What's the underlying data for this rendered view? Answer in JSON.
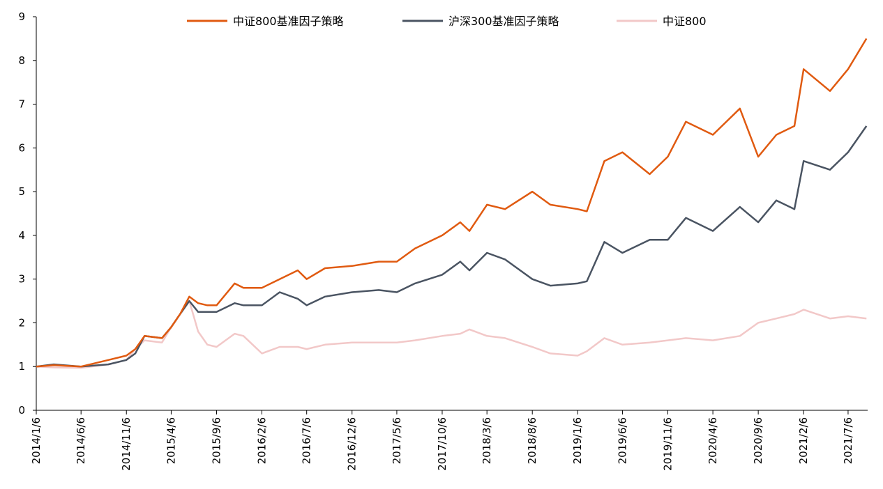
{
  "chart_data": {
    "type": "line",
    "title": "",
    "xlabel": "",
    "ylabel": "",
    "ylim": [
      0,
      9
    ],
    "yticks": [
      "0",
      "1",
      "2",
      "3",
      "4",
      "5",
      "6",
      "7",
      "8",
      "9"
    ],
    "x_tick_labels": [
      "2014/1/6",
      "2014/6/6",
      "2014/11/6",
      "2015/4/6",
      "2015/9/6",
      "2016/2/6",
      "2016/7/6",
      "2016/12/6",
      "2017/5/6",
      "2017/10/6",
      "2018/3/6",
      "2018/8/6",
      "2019/1/6",
      "2019/6/6",
      "2019/11/6",
      "2020/4/6",
      "2020/9/6",
      "2021/2/6",
      "2021/7/6"
    ],
    "grid": false,
    "legend_position": "top-center",
    "x": [
      "2014/1/6",
      "2014/3/6",
      "2014/6/6",
      "2014/9/6",
      "2014/11/6",
      "2014/12/6",
      "2015/1/6",
      "2015/3/6",
      "2015/4/6",
      "2015/5/6",
      "2015/6/6",
      "2015/7/6",
      "2015/8/6",
      "2015/9/6",
      "2015/11/6",
      "2015/12/6",
      "2016/2/6",
      "2016/4/6",
      "2016/6/6",
      "2016/7/6",
      "2016/9/6",
      "2016/12/6",
      "2017/3/6",
      "2017/5/6",
      "2017/7/6",
      "2017/10/6",
      "2017/12/6",
      "2018/1/6",
      "2018/3/6",
      "2018/5/6",
      "2018/8/6",
      "2018/10/6",
      "2019/1/6",
      "2019/2/6",
      "2019/4/6",
      "2019/6/6",
      "2019/9/6",
      "2019/11/6",
      "2020/1/6",
      "2020/4/6",
      "2020/7/6",
      "2020/9/6",
      "2020/11/6",
      "2021/1/6",
      "2021/2/6",
      "2021/5/6",
      "2021/7/6",
      "2021/9/6"
    ],
    "series": [
      {
        "name": "中证800基准因子策略",
        "color": "#E05A10",
        "values": [
          1.0,
          1.03,
          1.0,
          1.15,
          1.25,
          1.4,
          1.7,
          1.65,
          1.9,
          2.2,
          2.6,
          2.45,
          2.4,
          2.4,
          2.9,
          2.8,
          2.8,
          3.0,
          3.2,
          3.0,
          3.25,
          3.3,
          3.4,
          3.4,
          3.7,
          4.0,
          4.3,
          4.1,
          4.7,
          4.6,
          5.0,
          4.7,
          4.6,
          4.55,
          5.7,
          5.9,
          5.4,
          5.8,
          6.6,
          6.3,
          6.9,
          5.8,
          6.3,
          6.5,
          7.8,
          7.3,
          7.8,
          8.5
        ]
      },
      {
        "name": "沪深300基准因子策略",
        "color": "#4A5462",
        "values": [
          1.0,
          1.05,
          1.0,
          1.05,
          1.15,
          1.3,
          1.7,
          1.65,
          1.9,
          2.2,
          2.5,
          2.25,
          2.25,
          2.25,
          2.45,
          2.4,
          2.4,
          2.7,
          2.55,
          2.4,
          2.6,
          2.7,
          2.75,
          2.7,
          2.9,
          3.1,
          3.4,
          3.2,
          3.6,
          3.45,
          3.0,
          2.85,
          2.9,
          2.95,
          3.85,
          3.6,
          3.9,
          3.9,
          4.4,
          4.1,
          4.65,
          4.3,
          4.8,
          4.6,
          5.7,
          5.5,
          5.9,
          6.5
        ]
      },
      {
        "name": "中证800",
        "color": "#F2C8C8",
        "values": [
          1.0,
          0.98,
          0.97,
          1.05,
          1.15,
          1.4,
          1.6,
          1.55,
          1.9,
          2.2,
          2.5,
          1.8,
          1.5,
          1.45,
          1.75,
          1.7,
          1.3,
          1.45,
          1.45,
          1.4,
          1.5,
          1.55,
          1.55,
          1.55,
          1.6,
          1.7,
          1.75,
          1.85,
          1.7,
          1.65,
          1.45,
          1.3,
          1.25,
          1.35,
          1.65,
          1.5,
          1.55,
          1.6,
          1.65,
          1.6,
          1.7,
          2.0,
          2.1,
          2.2,
          2.3,
          2.1,
          2.15,
          2.1
        ]
      }
    ]
  }
}
